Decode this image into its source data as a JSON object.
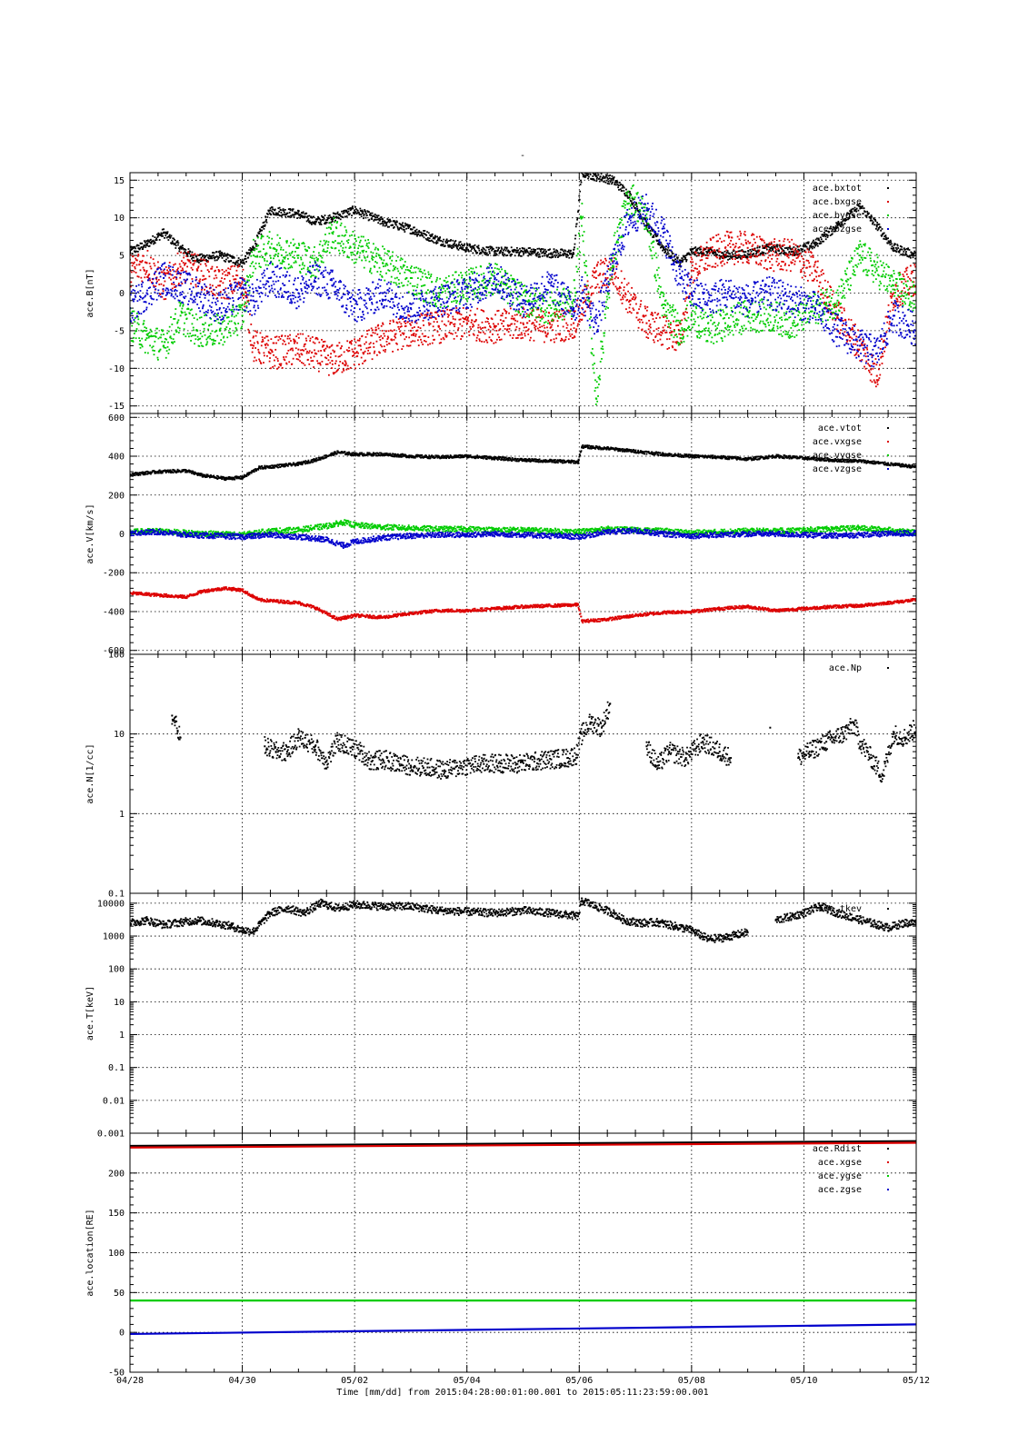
{
  "figure": {
    "title": "-",
    "xlabel": "Time [mm/dd]  from 2015:04:28:00:01:00.001  to  2015:05:11:23:59:00.001"
  },
  "colors": {
    "black": "#000000",
    "red": "#dd0000",
    "green": "#00cc00",
    "blue": "#0000cc"
  },
  "chart_data": [
    {
      "type": "scatter",
      "ylabel": "ace.B[nT]",
      "yscale": "linear",
      "ylim": [
        -16,
        16
      ],
      "xlim": [
        0,
        14
      ],
      "x_tick_labels": [
        "04/28",
        "04/30",
        "05/02",
        "05/04",
        "05/06",
        "05/08",
        "05/10",
        "05/12"
      ],
      "x_tick_values": [
        0,
        2,
        4,
        6,
        8,
        10,
        12,
        14
      ],
      "y_ticks": [
        -15,
        -10,
        -5,
        0,
        5,
        10,
        15
      ],
      "y_tick_labels": [
        "-15",
        "-10",
        "-5",
        "0",
        "5",
        "10",
        "15"
      ],
      "grid": true,
      "legend_position": "top-right",
      "series": [
        {
          "name": "ace.bxtot",
          "color": "#000000",
          "x": [
            0,
            0.3,
            0.6,
            0.9,
            1.2,
            1.6,
            2.0,
            2.2,
            2.5,
            3.0,
            3.3,
            3.6,
            4.0,
            4.5,
            5.0,
            5.5,
            6.0,
            6.5,
            7.0,
            7.5,
            7.9,
            8.05,
            8.3,
            8.6,
            8.9,
            9.2,
            9.5,
            9.8,
            10.0,
            10.3,
            10.6,
            11.0,
            11.4,
            11.8,
            12.2,
            12.6,
            13.0,
            13.3,
            13.6,
            14.0
          ],
          "y": [
            5.5,
            6.5,
            8,
            6,
            4.5,
            5,
            4,
            6,
            11,
            10.5,
            9.5,
            10,
            11,
            9.5,
            8.5,
            7,
            6,
            5.5,
            5.5,
            5.3,
            5.2,
            16,
            15.5,
            15,
            13,
            9,
            6,
            4,
            5.5,
            5.5,
            5,
            5.2,
            6,
            5.5,
            6.5,
            9,
            11.5,
            9,
            6,
            5
          ]
        },
        {
          "name": "ace.bxgse",
          "color": "#dd0000",
          "x": [
            0,
            0.3,
            0.6,
            0.9,
            1.2,
            1.6,
            2.0,
            2.2,
            2.5,
            3.0,
            3.3,
            3.6,
            4.0,
            4.5,
            5.0,
            5.5,
            6.0,
            6.5,
            7.0,
            7.5,
            7.9,
            8.05,
            8.3,
            8.6,
            8.9,
            9.2,
            9.5,
            9.8,
            10.0,
            10.3,
            10.6,
            11.0,
            11.4,
            11.8,
            12.2,
            12.6,
            13.0,
            13.3,
            13.6,
            14.0
          ],
          "y": [
            3,
            4,
            1,
            3.5,
            3,
            1,
            2,
            -7,
            -8,
            -7.5,
            -8,
            -9,
            -8,
            -6,
            -5,
            -4.5,
            -4,
            -4.5,
            -4,
            -4.5,
            -4,
            -2,
            2,
            3,
            -1,
            -4,
            -5,
            -6,
            3,
            5,
            6,
            6,
            5,
            5,
            3,
            -3,
            -7,
            -11,
            0,
            2
          ]
        },
        {
          "name": "ace.bygse",
          "color": "#00cc00",
          "x": [
            0,
            0.3,
            0.6,
            0.9,
            1.2,
            1.6,
            2.0,
            2.2,
            2.5,
            3.0,
            3.3,
            3.6,
            4.0,
            4.5,
            5.0,
            5.5,
            6.0,
            6.5,
            7.0,
            7.5,
            7.9,
            8.05,
            8.3,
            8.6,
            8.9,
            9.2,
            9.5,
            9.8,
            10.0,
            10.3,
            10.6,
            11.0,
            11.4,
            11.8,
            12.2,
            12.6,
            13.0,
            13.3,
            13.6,
            14.0
          ],
          "y": [
            -4,
            -6,
            -7,
            -3,
            -5,
            -5,
            -3,
            5,
            6,
            5,
            4,
            8,
            6,
            4,
            2,
            0,
            1,
            2,
            -1,
            -2,
            -1,
            10,
            -14,
            5,
            13,
            10,
            -2,
            -5,
            -3,
            -5,
            -4,
            -3,
            -3,
            -4,
            -2,
            -1,
            5,
            3,
            1,
            -1
          ]
        },
        {
          "name": "ace.bzgse",
          "color": "#0000cc",
          "x": [
            0,
            0.3,
            0.6,
            0.9,
            1.2,
            1.6,
            2.0,
            2.2,
            2.5,
            3.0,
            3.3,
            3.6,
            4.0,
            4.5,
            5.0,
            5.5,
            6.0,
            6.5,
            7.0,
            7.5,
            7.9,
            8.05,
            8.3,
            8.6,
            8.9,
            9.2,
            9.5,
            9.8,
            10.0,
            10.3,
            10.6,
            11.0,
            11.4,
            11.8,
            12.2,
            12.6,
            13.0,
            13.3,
            13.6,
            14.0
          ],
          "y": [
            -2,
            0,
            2,
            1,
            0,
            -2,
            0,
            -1,
            2,
            0,
            2,
            1,
            -2,
            0,
            -2,
            -1,
            0,
            2,
            -1,
            1,
            -2,
            0,
            -4,
            4,
            10,
            11,
            8,
            2,
            0,
            -1,
            0,
            -1,
            0,
            -1,
            -2,
            -5,
            -7,
            -8,
            -3,
            -5
          ]
        }
      ]
    },
    {
      "type": "scatter",
      "ylabel": "ace.V[km/s]",
      "yscale": "linear",
      "ylim": [
        -620,
        620
      ],
      "xlim": [
        0,
        14
      ],
      "y_ticks": [
        -600,
        -400,
        -200,
        0,
        200,
        400,
        600
      ],
      "y_tick_labels": [
        "-600",
        "-400",
        "-200",
        "0",
        "200",
        "400",
        "600"
      ],
      "grid": true,
      "legend_position": "top-right",
      "series": [
        {
          "name": "ace.vtot",
          "color": "#000000",
          "x": [
            0,
            0.5,
            1.0,
            1.3,
            1.7,
            2.0,
            2.3,
            3.0,
            3.3,
            3.7,
            4.0,
            4.5,
            5.0,
            5.5,
            6.0,
            6.5,
            7.0,
            7.5,
            7.98,
            8.05,
            8.5,
            9.0,
            9.5,
            10.0,
            10.5,
            11.0,
            11.5,
            12.0,
            12.5,
            13.0,
            13.5,
            14.0
          ],
          "y": [
            305,
            320,
            325,
            300,
            285,
            290,
            340,
            360,
            380,
            420,
            410,
            410,
            400,
            395,
            400,
            390,
            380,
            375,
            370,
            450,
            440,
            425,
            410,
            400,
            395,
            385,
            400,
            390,
            380,
            375,
            360,
            345
          ]
        },
        {
          "name": "ace.vxgse",
          "color": "#dd0000",
          "x": [
            0,
            0.5,
            1.0,
            1.3,
            1.7,
            2.0,
            2.3,
            3.0,
            3.3,
            3.7,
            4.0,
            4.5,
            5.0,
            5.5,
            6.0,
            6.5,
            7.0,
            7.5,
            7.98,
            8.05,
            8.5,
            9.0,
            9.5,
            10.0,
            10.5,
            11.0,
            11.5,
            12.0,
            12.5,
            13.0,
            13.5,
            14.0
          ],
          "y": [
            -305,
            -315,
            -325,
            -295,
            -280,
            -290,
            -340,
            -355,
            -380,
            -440,
            -420,
            -430,
            -410,
            -395,
            -395,
            -385,
            -375,
            -370,
            -365,
            -450,
            -440,
            -420,
            -405,
            -400,
            -385,
            -375,
            -395,
            -385,
            -375,
            -370,
            -355,
            -340
          ]
        },
        {
          "name": "ace.vygse",
          "color": "#00cc00",
          "x": [
            0,
            0.5,
            1.0,
            1.5,
            2.0,
            2.5,
            3.0,
            3.5,
            3.8,
            4.0,
            4.5,
            5.0,
            5.5,
            6.0,
            6.5,
            7.0,
            7.5,
            8.0,
            8.5,
            9.0,
            9.5,
            10.0,
            10.5,
            11.0,
            11.5,
            12.0,
            12.5,
            13.0,
            13.5,
            14.0
          ],
          "y": [
            10,
            15,
            5,
            0,
            -5,
            15,
            20,
            40,
            60,
            45,
            35,
            30,
            25,
            25,
            20,
            20,
            15,
            10,
            25,
            20,
            15,
            5,
            10,
            15,
            15,
            20,
            25,
            30,
            20,
            5
          ]
        },
        {
          "name": "ace.vzgse",
          "color": "#0000cc",
          "x": [
            0,
            0.5,
            1.0,
            1.5,
            2.0,
            2.5,
            3.0,
            3.5,
            3.8,
            4.0,
            4.5,
            5.0,
            5.5,
            6.0,
            6.5,
            7.0,
            7.5,
            8.0,
            8.5,
            9.0,
            9.5,
            10.0,
            10.5,
            11.0,
            11.5,
            12.0,
            12.5,
            13.0,
            13.5,
            14.0
          ],
          "y": [
            5,
            10,
            -5,
            -10,
            -15,
            -5,
            -15,
            -30,
            -60,
            -40,
            -20,
            -10,
            -5,
            -5,
            0,
            -5,
            -10,
            -15,
            10,
            15,
            0,
            -10,
            -5,
            0,
            0,
            -5,
            -10,
            -5,
            0,
            5
          ]
        }
      ]
    },
    {
      "type": "scatter",
      "ylabel": "ace.N[1/cc]",
      "yscale": "log",
      "ylim": [
        0.1,
        100
      ],
      "xlim": [
        0,
        14
      ],
      "y_ticks": [
        0.1,
        1,
        10,
        100
      ],
      "y_tick_labels": [
        "0.1",
        "1",
        "10",
        "100"
      ],
      "grid": true,
      "legend_position": "top-right",
      "series": [
        {
          "name": "ace.Np",
          "color": "#000000",
          "x": [
            0.75,
            0.8,
            0.85,
            0.9,
            2.4,
            2.6,
            2.8,
            3.0,
            3.3,
            3.5,
            3.7,
            4.1,
            4.3,
            4.5,
            4.8,
            5.0,
            5.3,
            5.6,
            6.0,
            6.3,
            6.6,
            6.9,
            7.2,
            7.5,
            7.8,
            7.95,
            8.05,
            8.2,
            8.4,
            8.55,
            9.2,
            9.4,
            9.6,
            9.9,
            10.2,
            10.5,
            10.7,
            11.4,
            11.9,
            12.1,
            12.4,
            12.7,
            12.9,
            13.0,
            13.2,
            13.4,
            13.6,
            13.8,
            14.0
          ],
          "y": [
            17,
            14,
            11,
            9,
            7,
            6,
            6,
            9,
            7,
            4.5,
            8,
            6,
            4.5,
            4.8,
            4.2,
            4,
            3.8,
            3.5,
            4,
            4.2,
            4.3,
            4.2,
            4.5,
            4.8,
            5,
            5.5,
            10,
            14,
            12,
            24,
            7,
            4,
            6,
            5,
            8,
            6,
            5,
            12,
            5,
            6,
            8,
            10,
            13,
            8,
            5,
            3,
            10,
            9,
            12
          ]
        }
      ]
    },
    {
      "type": "scatter",
      "ylabel": "ace.T[keV]",
      "yscale": "log",
      "ylim": [
        0.001,
        20000
      ],
      "xlim": [
        0,
        14
      ],
      "y_ticks": [
        0.001,
        0.01,
        0.1,
        1,
        10,
        100,
        1000,
        10000
      ],
      "y_tick_labels": [
        "0.001",
        "0.01",
        "0.1",
        "1",
        "10",
        "100",
        "1000",
        "10000"
      ],
      "grid": true,
      "legend_position": "top-right",
      "series": [
        {
          "name": "ace.tkev",
          "color": "#000000",
          "x": [
            0,
            0.3,
            0.6,
            0.9,
            1.2,
            1.5,
            1.8,
            2.0,
            2.2,
            2.5,
            2.8,
            3.1,
            3.4,
            3.7,
            4.0,
            4.5,
            5.0,
            5.5,
            6.0,
            6.5,
            7.0,
            7.5,
            7.98,
            8.05,
            8.3,
            8.6,
            8.8,
            9.1,
            9.4,
            9.7,
            10.0,
            10.3,
            10.6,
            11.0,
            11.3,
            11.5,
            11.8,
            12.0,
            12.3,
            12.6,
            12.9,
            13.2,
            13.5,
            13.8,
            14.0
          ],
          "y": [
            2500,
            3000,
            2200,
            2600,
            3000,
            2500,
            2000,
            1500,
            1400,
            5000,
            7000,
            5000,
            10000,
            7000,
            9000,
            8000,
            8000,
            6000,
            5500,
            5000,
            6000,
            5000,
            4000,
            12000,
            8000,
            5000,
            3000,
            2500,
            2600,
            2000,
            1500,
            800,
            900,
            1300,
            null,
            3000,
            4000,
            5000,
            8000,
            5000,
            3500,
            2500,
            1800,
            2500,
            2500
          ]
        }
      ]
    },
    {
      "type": "scatter",
      "ylabel": "ace.location[RE]",
      "yscale": "linear",
      "ylim": [
        -50,
        250
      ],
      "xlim": [
        0,
        14
      ],
      "y_ticks": [
        -50,
        0,
        50,
        100,
        150,
        200
      ],
      "y_tick_labels": [
        "-50",
        "0",
        "50",
        "100",
        "150",
        "200"
      ],
      "grid": true,
      "legend_position": "top-right",
      "series": [
        {
          "name": "ace.Rdist",
          "color": "#000000",
          "x": [
            0,
            14
          ],
          "y": [
            234,
            240
          ]
        },
        {
          "name": "ace.xgse",
          "color": "#dd0000",
          "x": [
            0,
            14
          ],
          "y": [
            232,
            238
          ]
        },
        {
          "name": "ace.ygse",
          "color": "#00cc00",
          "x": [
            0,
            14
          ],
          "y": [
            40,
            40
          ]
        },
        {
          "name": "ace.zgse",
          "color": "#0000cc",
          "x": [
            0,
            14
          ],
          "y": [
            -2,
            10
          ]
        }
      ]
    }
  ]
}
